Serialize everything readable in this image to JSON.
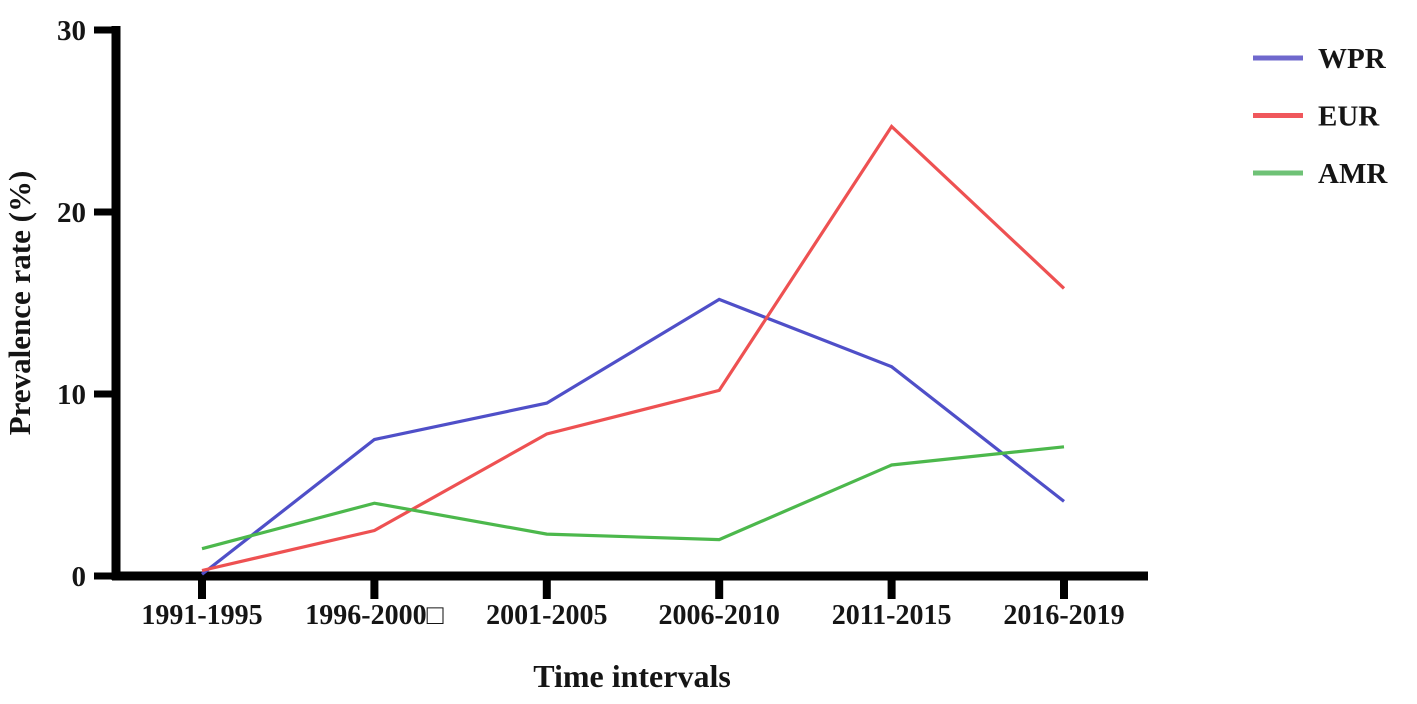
{
  "figure": {
    "background_color": "#ffffff",
    "axis_color": "#000000",
    "text_color": "#151515"
  },
  "chart_data": {
    "type": "line",
    "title": "",
    "xlabel": "Time intervals",
    "ylabel": "Prevalence rate (%)",
    "categories": [
      "1991-1995",
      "1996-2000□",
      "2001-2005",
      "2006-2010",
      "2011-2015",
      "2016-2019"
    ],
    "yticks": [
      0,
      10,
      20,
      30
    ],
    "ylim": [
      0,
      30
    ],
    "grid": false,
    "markers": false,
    "legend_position": "top-right",
    "series": [
      {
        "name": "WPR",
        "color": "#4f4fc8",
        "legend_color": "#6f68cd",
        "values": [
          0.1,
          7.5,
          9.5,
          15.2,
          11.5,
          4.1
        ]
      },
      {
        "name": "EUR",
        "color": "#ee5152",
        "legend_color": "#f0575c",
        "values": [
          0.3,
          2.5,
          7.8,
          10.2,
          24.7,
          15.8
        ]
      },
      {
        "name": "AMR",
        "color": "#4cb84c",
        "legend_color": "#6fc276",
        "values": [
          1.5,
          4.0,
          2.3,
          2.0,
          6.1,
          7.1
        ]
      }
    ]
  }
}
